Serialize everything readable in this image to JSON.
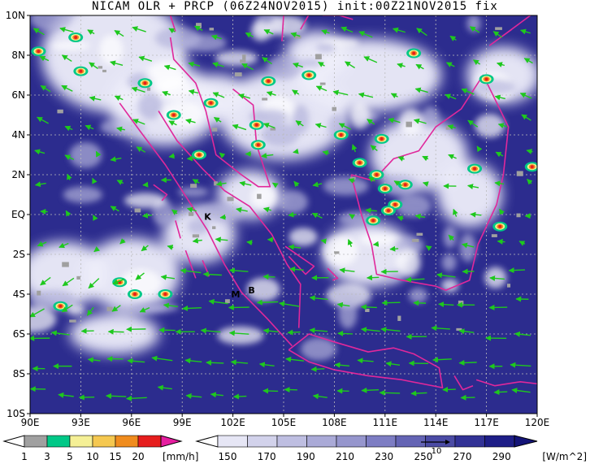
{
  "title": "NICAM OLR + PRCP (06Z24NOV2015) init:00Z21NOV2015 fix",
  "map": {
    "lon_labels": [
      "90E",
      "93E",
      "96E",
      "99E",
      "102E",
      "105E",
      "108E",
      "111E",
      "114E",
      "117E",
      "120E"
    ],
    "lat_labels": [
      "10N",
      "8N",
      "6N",
      "4N",
      "2N",
      "EQ",
      "2S",
      "4S",
      "6S",
      "8S",
      "10S"
    ],
    "markers": [
      {
        "text": "K",
        "lon": 100.3,
        "lat": -0.1
      },
      {
        "text": "M",
        "lon": 101.9,
        "lat": -4.0
      },
      {
        "text": "B",
        "lon": 102.9,
        "lat": -3.8
      }
    ]
  },
  "colorbar_prcp": {
    "unit": "[mm/h]",
    "ticks": [
      "1",
      "3",
      "5",
      "10",
      "15",
      "20"
    ],
    "colors": [
      "#a0a0a0",
      "#00c887",
      "#f5f096",
      "#f5c850",
      "#f08c1e",
      "#e61e1e",
      "#e61ea0"
    ]
  },
  "colorbar_olr": {
    "unit": "[W/m^2]",
    "ticks": [
      "150",
      "170",
      "190",
      "210",
      "230",
      "250",
      "270",
      "290"
    ],
    "vector_ref": "10",
    "colors": [
      "#ffffff",
      "#e6e6f5",
      "#d2d2eb",
      "#bebee1",
      "#aaaad7",
      "#9696cd",
      "#7d7dc3",
      "#6464b4",
      "#4b4ba5",
      "#323296",
      "#1e1e87",
      "#141478"
    ]
  },
  "colors": {
    "wind_vector": "#1ec81e",
    "coastline": "#e0289b",
    "background": "#2a2a8c"
  }
}
